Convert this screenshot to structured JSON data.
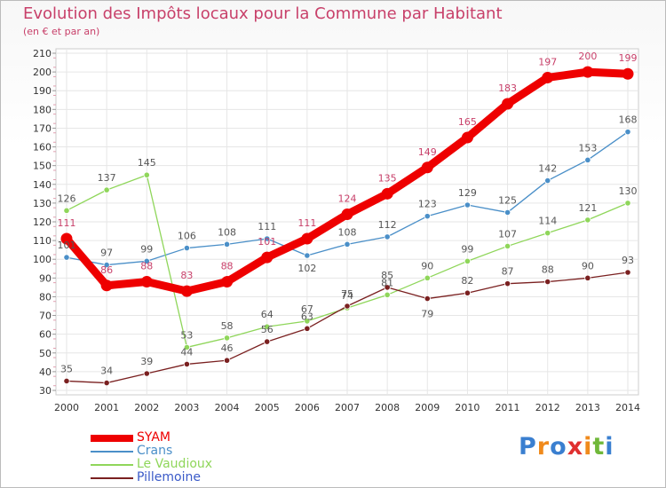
{
  "chart_data": {
    "type": "line",
    "title": "Evolution des Impôts locaux pour la Commune par Habitant",
    "subtitle": "(en € et par an)",
    "xlabel": "",
    "ylabel": "",
    "categories": [
      "2000",
      "2001",
      "2002",
      "2003",
      "2004",
      "2005",
      "2006",
      "2007",
      "2008",
      "2009",
      "2010",
      "2011",
      "2012",
      "2013",
      "2014"
    ],
    "yticks": [
      "30",
      "40",
      "50",
      "60",
      "70",
      "80",
      "90",
      "100",
      "110",
      "120",
      "130",
      "140",
      "150",
      "160",
      "170",
      "180",
      "190",
      "200",
      "210"
    ],
    "ylim": [
      30,
      210
    ],
    "grid": true,
    "legend_position": "bottom-left",
    "series": [
      {
        "name": "SYAM",
        "color": "#ee0000",
        "values": [
          111,
          86,
          88,
          83,
          88,
          101,
          111,
          124,
          135,
          149,
          165,
          183,
          197,
          200,
          199
        ],
        "labels": [
          "111",
          "86",
          "88",
          "83",
          "88",
          "101",
          "111",
          "124",
          "135",
          "149",
          "165",
          "183",
          "197",
          "200",
          "199"
        ]
      },
      {
        "name": "Crans",
        "color": "#4a8fc8",
        "values": [
          101,
          97,
          99,
          106,
          108,
          111,
          102,
          108,
          112,
          123,
          129,
          125,
          142,
          153,
          168
        ],
        "labels": [
          "101",
          "97",
          "99",
          "106",
          "108",
          "111",
          "102",
          "108",
          "112",
          "123",
          "129",
          "125",
          "142",
          "153",
          "168"
        ]
      },
      {
        "name": "Le Vaudioux",
        "color": "#8fd65a",
        "values": [
          126,
          137,
          145,
          53,
          58,
          64,
          67,
          74,
          81,
          90,
          99,
          107,
          114,
          121,
          130
        ],
        "labels": [
          "126",
          "137",
          "145",
          "53",
          "58",
          "64",
          "67",
          "74",
          "81",
          "90",
          "99",
          "107",
          "114",
          "121",
          "130"
        ]
      },
      {
        "name": "Pillemoine",
        "color": "#7a2020",
        "values": [
          35,
          34,
          39,
          44,
          46,
          56,
          63,
          75,
          85,
          79,
          82,
          87,
          88,
          90,
          93
        ],
        "labels": [
          "35",
          "34",
          "39",
          "44",
          "46",
          "56",
          "63",
          "75",
          "85",
          "79",
          "82",
          "87",
          "88",
          "90",
          "93"
        ]
      }
    ]
  },
  "logo": {
    "text": [
      "P",
      "r",
      "o",
      "x",
      "i",
      "t",
      "i"
    ],
    "colors": [
      "#3a7fd0",
      "#f08a1c",
      "#3a7fd0",
      "#e03030",
      "#f08a1c",
      "#70b83a",
      "#3a7fd0"
    ]
  }
}
